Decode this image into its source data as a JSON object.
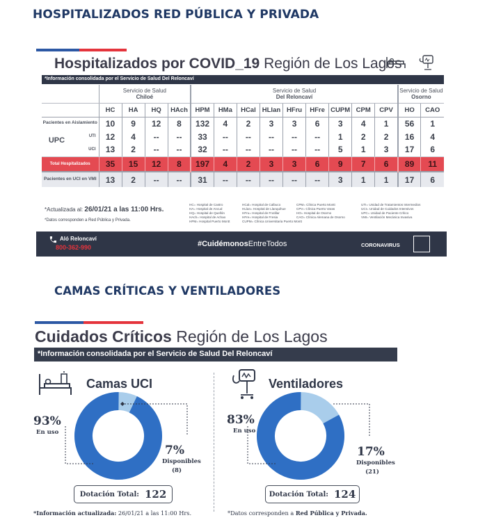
{
  "heading_1": "HOSPITALIZADOS RED PÚBLICA Y PRIVADA",
  "heading_2": "CAMAS CRÍTICAS Y VENTILADORES",
  "hosp_card": {
    "title_bold": "Hospitalizados por COVID_19",
    "title_region": "Región de Los Lagos",
    "info_bar": "*Información consolidada por el Servicio de Salud Del Reloncaví",
    "groups": [
      {
        "name": "Servicio de Salud",
        "sub": "Chiloé"
      },
      {
        "name": "Servicio de Salud",
        "sub": "Del Reloncaví"
      },
      {
        "name": "Servicio de Salud",
        "sub": "Osorno"
      }
    ],
    "columns": [
      "HC",
      "HA",
      "HQ",
      "HAch",
      "HPM",
      "HMa",
      "HCal",
      "HLlan",
      "HFru",
      "HFre",
      "CUPM",
      "CPM",
      "CPV",
      "HO",
      "CAO"
    ],
    "rows": {
      "aislamiento": {
        "label": "Pacientes en Aislamiento",
        "values": [
          "10",
          "9",
          "12",
          "8",
          "132",
          "4",
          "2",
          "3",
          "3",
          "6",
          "3",
          "4",
          "1",
          "56",
          "1"
        ]
      },
      "upc_label": "UPC",
      "uti": {
        "label": "UTI",
        "values": [
          "12",
          "4",
          "--",
          "--",
          "33",
          "--",
          "--",
          "--",
          "--",
          "--",
          "1",
          "2",
          "2",
          "16",
          "4"
        ]
      },
      "uci": {
        "label": "UCI",
        "values": [
          "13",
          "2",
          "--",
          "--",
          "32",
          "--",
          "--",
          "--",
          "--",
          "--",
          "5",
          "1",
          "3",
          "17",
          "6"
        ]
      },
      "total": {
        "label": "Total Hospitalizados",
        "values": [
          "35",
          "15",
          "12",
          "8",
          "197",
          "4",
          "2",
          "3",
          "3",
          "6",
          "9",
          "7",
          "6",
          "89",
          "11"
        ]
      },
      "vmi": {
        "label": "Pacientes en UCI en VMI",
        "values": [
          "13",
          "2",
          "--",
          "--",
          "31",
          "--",
          "--",
          "--",
          "--",
          "--",
          "3",
          "1",
          "1",
          "17",
          "6"
        ]
      }
    },
    "updated_prefix": "*Actualizada al:",
    "updated_value": "26/01/21 a las 11:00 Hrs.",
    "note": "*Datos corresponden a Red Pública y Privada.",
    "legend_cols": [
      [
        "HC= Hospital de Castro",
        "HA= Hospital de Ancud",
        "HQ= Hospital de Quellón",
        "HAch= Hospital de Achao",
        "HPM= Hospital Puerto Montt"
      ],
      [
        "HCal= Hospital de Calbuco",
        "HLlan= Hospital de Llanquihue",
        "HFru= Hospital de Frutillar",
        "HFre= Hospital de Fresia",
        "CUPM= Clínica Universitaria Puerto Montt"
      ],
      [
        "CPM= Clínica Puerto Montt",
        "CPV= Clínica Puerto Varas",
        "HO= Hospital de Osorno",
        "CAO= Clínica Alemana de Osorno"
      ],
      [
        "UTI= Unidad de Tratamientos Intermedios",
        "UCI= Unidad de Cuidados Intensivos",
        "UPC= Unidad de Paciente Crítico",
        "VMI= Ventilación Mecánica Invasiva"
      ]
    ],
    "footer": {
      "alo_label": "Aló Reloncaví",
      "alo_number": "800-362-990",
      "hashtag_prefix": "#Cuidémonos",
      "hashtag_suffix": "EntreTodos",
      "campaign": "CORONAVIRUS"
    }
  },
  "critical_card": {
    "title_bold": "Cuidados Críticos",
    "title_region": "Región de Los Lagos",
    "info_bar": "*Información consolidada por el Servicio de Salud Del Reloncaví",
    "camas": {
      "title": "Camas UCI",
      "used_pct": "93%",
      "used_label": "En uso",
      "free_pct": "7%",
      "free_label": "Disponibles",
      "free_count": "(8)",
      "total_label": "Dotación Total:",
      "total_value": "122",
      "used_fraction": 0.93
    },
    "ventiladores": {
      "title": "Ventiladores",
      "used_pct": "83%",
      "used_label": "En uso",
      "free_pct": "17%",
      "free_label": "Disponibles",
      "free_count": "(21)",
      "total_label": "Dotación Total:",
      "total_value": "124",
      "used_fraction": 0.83
    },
    "footnote_left": "*Información actualizada:",
    "footnote_left_value": "26/01/21 a las 11:00 Hrs.",
    "footnote_right_prefix": "*Datos corresponden a",
    "footnote_right_bold": "Red Pública y Privada."
  },
  "colors": {
    "navy": "#1f3864",
    "dark_bar": "#2f3647",
    "red": "#e44a52",
    "donut_used": "#2f6fc4",
    "donut_free": "#a9cdeb"
  }
}
